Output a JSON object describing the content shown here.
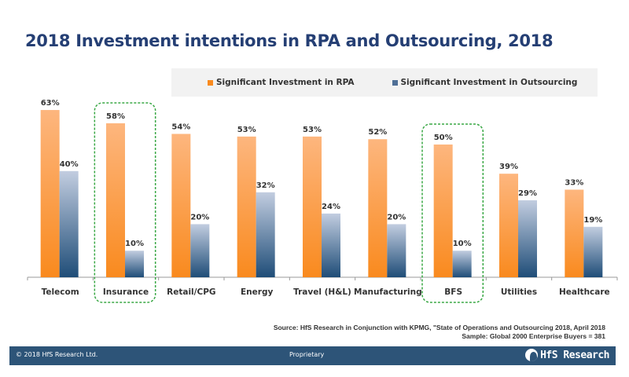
{
  "slide": {
    "title": "2018 Investment intentions in RPA and Outsourcing, 2018",
    "source_line1": "Source: HfS Research in Conjunction with KPMG, \"State of Operations and Outsourcing 2018, April 2018",
    "source_line2": "Sample: Global 2000 Enterprise Buyers = 381",
    "footer": {
      "copyright": "© 2018 HfS Research Ltd.",
      "proprietary": "Proprietary",
      "logo_text": "HfS Research"
    }
  },
  "colors": {
    "rpa_top": "#fdb67e",
    "rpa_bottom": "#f98a1e",
    "outsourcing_top": "#c2cde0",
    "outsourcing_bottom": "#1f4d78",
    "highlight": "#3aa845",
    "title": "#253f74",
    "footer_bg": "#2d5478"
  },
  "chart_data": {
    "type": "bar",
    "title": "2018 Investment intentions in RPA and Outsourcing, 2018",
    "xlabel": "",
    "ylabel": "",
    "ylim": [
      0,
      70
    ],
    "grid": false,
    "legend_position": "top-right",
    "categories": [
      "Telecom",
      "Insurance",
      "Retail/CPG",
      "Energy",
      "Travel (H&L)",
      "Manufacturing",
      "BFS",
      "Utilities",
      "Healthcare"
    ],
    "series": [
      {
        "name": "Significant Investment in RPA",
        "values": [
          63,
          58,
          54,
          53,
          53,
          52,
          50,
          39,
          33
        ]
      },
      {
        "name": "Significant Investment in Outsourcing",
        "values": [
          40,
          10,
          20,
          32,
          24,
          20,
          10,
          29,
          19
        ]
      }
    ],
    "value_suffix": "%",
    "highlighted_categories": [
      "Insurance",
      "BFS"
    ]
  }
}
